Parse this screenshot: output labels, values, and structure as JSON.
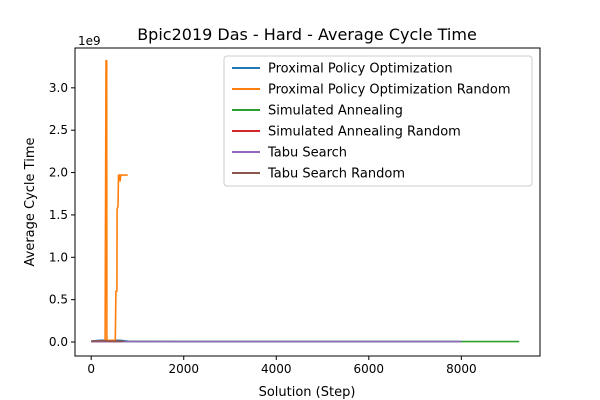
{
  "chart_data": {
    "type": "line",
    "title": "Bpic2019 Das - Hard - Average Cycle Time",
    "xlabel": "Solution (Step)",
    "ylabel": "Average Cycle Time",
    "y_multiplier_label": "1e9",
    "xlim": [
      -350,
      9700
    ],
    "ylim": [
      -0.165,
      3.47
    ],
    "x_ticks": [
      0,
      2000,
      4000,
      6000,
      8000
    ],
    "x_tick_labels": [
      "0",
      "2000",
      "4000",
      "6000",
      "8000"
    ],
    "y_ticks": [
      0.0,
      0.5,
      1.0,
      1.5,
      2.0,
      2.5,
      3.0
    ],
    "y_tick_labels": [
      "0.0",
      "0.5",
      "1.0",
      "1.5",
      "2.0",
      "2.5",
      "3.0"
    ],
    "grid": false,
    "legend_position": "top-right",
    "series": [
      {
        "name": "Proximal Policy Optimization",
        "color": "#1f77b4",
        "points": [
          [
            0,
            0.01
          ],
          [
            100,
            0.015
          ],
          [
            200,
            0.02
          ],
          [
            300,
            0.02
          ],
          [
            400,
            0.02
          ],
          [
            500,
            0.02
          ],
          [
            600,
            0.02
          ],
          [
            700,
            0.015
          ],
          [
            800,
            0.01
          ],
          [
            2000,
            0.005
          ],
          [
            4000,
            0.005
          ],
          [
            6000,
            0.005
          ],
          [
            8000,
            0.005
          ]
        ]
      },
      {
        "name": "Proximal Policy Optimization Random",
        "color": "#ff7f0e",
        "points": [
          [
            300,
            0.02
          ],
          [
            320,
            3.32
          ],
          [
            335,
            3.32
          ],
          [
            340,
            0.02
          ],
          [
            520,
            0.02
          ],
          [
            535,
            0.6
          ],
          [
            555,
            0.6
          ],
          [
            560,
            1.57
          ],
          [
            580,
            1.6
          ],
          [
            590,
            1.97
          ],
          [
            620,
            1.97
          ],
          [
            625,
            1.9
          ],
          [
            640,
            1.97
          ],
          [
            790,
            1.97
          ]
        ]
      },
      {
        "name": "Simulated Annealing",
        "color": "#2ca02c",
        "points": [
          [
            0,
            0.005
          ],
          [
            2000,
            0.005
          ],
          [
            4000,
            0.005
          ],
          [
            6000,
            0.005
          ],
          [
            8000,
            0.005
          ],
          [
            9250,
            0.005
          ]
        ]
      },
      {
        "name": "Simulated Annealing Random",
        "color": "#d62728",
        "points": [
          [
            0,
            0.005
          ],
          [
            200,
            0.005
          ],
          [
            400,
            0.005
          ],
          [
            600,
            0.005
          ],
          [
            700,
            0.005
          ]
        ]
      },
      {
        "name": "Tabu Search",
        "color": "#9467bd",
        "points": [
          [
            0,
            0.005
          ],
          [
            2000,
            0.005
          ],
          [
            4000,
            0.005
          ],
          [
            6000,
            0.005
          ],
          [
            8000,
            0.005
          ]
        ]
      },
      {
        "name": "Tabu Search Random",
        "color": "#8c564b",
        "points": [
          [
            0,
            0.01
          ],
          [
            200,
            0.015
          ],
          [
            400,
            0.01
          ],
          [
            600,
            0.01
          ],
          [
            700,
            0.01
          ]
        ]
      }
    ]
  }
}
